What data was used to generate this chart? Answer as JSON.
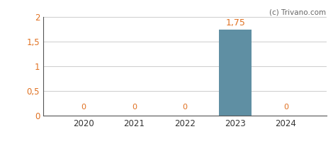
{
  "categories": [
    2020,
    2021,
    2022,
    2023,
    2024
  ],
  "values": [
    0,
    0,
    0,
    1.75,
    0
  ],
  "bar_color": "#5f8fa3",
  "ylim": [
    0,
    2
  ],
  "yticks": [
    0,
    0.5,
    1,
    1.5,
    2
  ],
  "ytick_labels": [
    "0",
    "0,5",
    "1",
    "1,5",
    "2"
  ],
  "value_labels": [
    "0",
    "0",
    "0",
    "1,75",
    "0"
  ],
  "watermark": "(c) Trivano.com",
  "background_color": "#ffffff",
  "grid_color": "#cccccc",
  "bar_width": 0.65,
  "tick_label_color": "#e07020",
  "axis_label_color": "#333333",
  "watermark_color": "#666666"
}
